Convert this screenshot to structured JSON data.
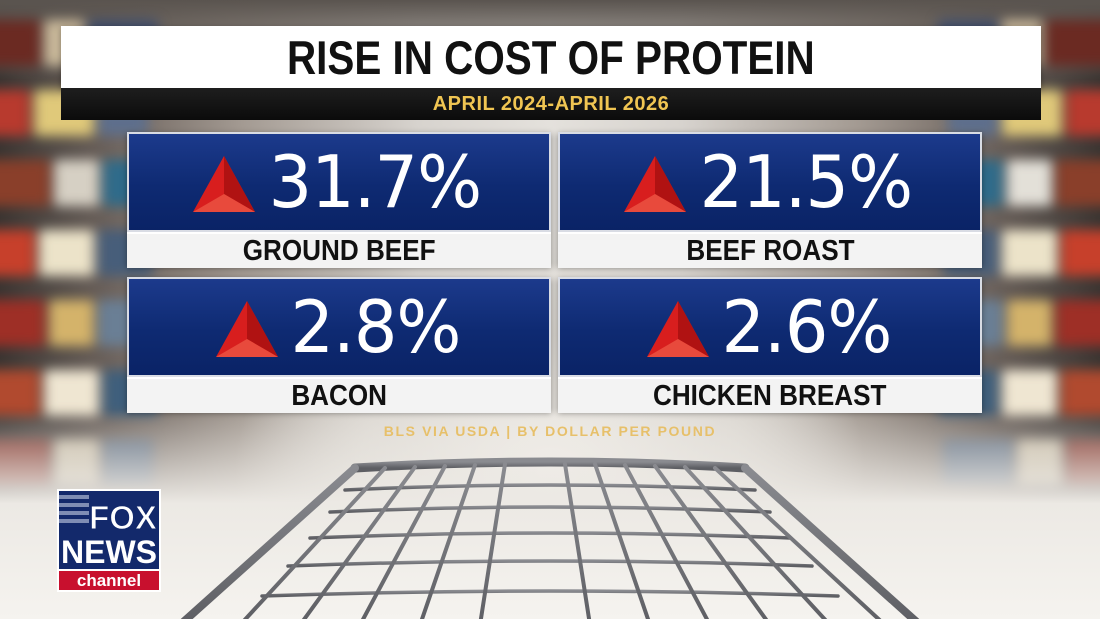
{
  "title": "RISE IN COST OF PROTEIN",
  "subtitle": "APRIL 2024-APRIL 2026",
  "items": [
    {
      "value": "31.7%",
      "label": "GROUND BEEF"
    },
    {
      "value": "21.5%",
      "label": "BEEF ROAST"
    },
    {
      "value": "2.8%",
      "label": "BACON"
    },
    {
      "value": "2.6%",
      "label": "CHICKEN BREAST"
    }
  ],
  "source": "BLS VIA USDA | BY DOLLAR PER POUND",
  "logo": {
    "line1": "FOX",
    "line2": "NEWS",
    "line3": "channel"
  },
  "colors": {
    "accent_gold": "#f0c552",
    "card_blue": "#0e2a72",
    "up_arrow_red": "#d81e1e",
    "logo_blue": "#13296b",
    "logo_red": "#c8102e"
  },
  "icons": [
    "up-triangle-icon",
    "fox-news-logo-icon",
    "shopping-cart-icon"
  ]
}
